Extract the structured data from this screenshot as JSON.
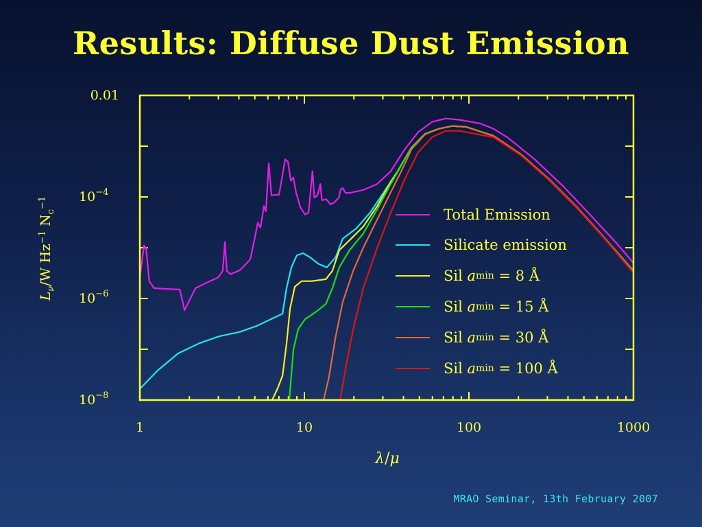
{
  "slide": {
    "title": "Results: Diffuse Dust Emission",
    "footer": "MRAO Seminar, 13th February 2007"
  },
  "chart_data": {
    "type": "line",
    "title": "Results: Diffuse Dust Emission",
    "xlabel": {
      "var": "λ",
      "sep": "/",
      "unit": "μ"
    },
    "ylabel": {
      "var": "L",
      "sub": "ν",
      "unit": "/W Hz",
      "exp1": "−1",
      "n": " N",
      "nsub": "c",
      "exp2": "−1"
    },
    "xscale": "log",
    "yscale": "log",
    "xlim": [
      1,
      1000
    ],
    "ylim": [
      1e-08,
      0.01
    ],
    "xticks": [
      {
        "value": 1,
        "label": "1"
      },
      {
        "value": 10,
        "label": "10"
      },
      {
        "value": 100,
        "label": "100"
      },
      {
        "value": 1000,
        "label": "1000"
      }
    ],
    "yticks": [
      {
        "value": 0.01,
        "base": "0.01",
        "exp": ""
      },
      {
        "value": 0.0001,
        "base": "10",
        "exp": "−4"
      },
      {
        "value": 1e-06,
        "base": "10",
        "exp": "−6"
      },
      {
        "value": 1e-08,
        "base": "10",
        "exp": "−8"
      }
    ],
    "legend_position": "center-right",
    "grid": false,
    "series": [
      {
        "name": "Total Emission",
        "label": {
          "prefix": "Total Emission"
        },
        "color": "#e41ee4",
        "x": [
          1,
          1.06,
          1.09,
          1.14,
          1.22,
          1.41,
          1.75,
          1.87,
          2.18,
          2.51,
          2.99,
          3.19,
          3.29,
          3.38,
          3.55,
          4.06,
          4.69,
          5.01,
          5.21,
          5.41,
          5.68,
          5.84,
          6.07,
          6.31,
          6.68,
          7.01,
          7.36,
          7.64,
          7.94,
          8.26,
          8.58,
          8.91,
          9.44,
          10.1,
          10.6,
          11.2,
          11.5,
          12.0,
          12.5,
          12.8,
          13.6,
          14.4,
          15.2,
          16.2,
          16.6,
          17.1,
          17.8,
          18.8,
          22.8,
          27.7,
          33.5,
          40.6,
          49.2,
          59.6,
          72.2,
          87.4,
          117,
          141,
          171,
          251,
          369,
          541,
          794,
          1000
        ],
        "y": [
          2.6e-06,
          1.1e-05,
          1e-05,
          2.2e-06,
          1.6e-06,
          1.55e-06,
          1.5e-06,
          5.9e-07,
          1.6e-06,
          2e-06,
          2.6e-06,
          3.5e-06,
          1.3e-05,
          3.5e-06,
          3e-06,
          3.6e-06,
          5.9e-06,
          1.65e-05,
          3.1e-05,
          2.5e-05,
          6.6e-05,
          5.2e-05,
          0.00046,
          0.000107,
          0.00011,
          0.00011,
          0.00027,
          0.00055,
          0.0005,
          0.00021,
          0.00024,
          0.00012,
          6.3e-05,
          4.5e-05,
          4.9e-05,
          0.00032,
          9.7e-05,
          0.000107,
          0.00018,
          8.6e-05,
          9e-05,
          7.1e-05,
          7.8e-05,
          9.7e-05,
          0.00014,
          0.00015,
          0.00012,
          0.00012,
          0.000137,
          0.00018,
          0.00032,
          0.00085,
          0.0019,
          0.003,
          0.0035,
          0.0033,
          0.0028,
          0.0022,
          0.0015,
          0.00055,
          0.00017,
          4.6e-05,
          1.2e-05,
          5e-06
        ]
      },
      {
        "name": "Silicate emission",
        "label": {
          "prefix": "Silicate emission"
        },
        "color": "#22e4f2",
        "x": [
          1,
          1.28,
          1.71,
          2.28,
          3.04,
          4.06,
          5.16,
          6.25,
          7.36,
          7.79,
          8.33,
          9.0,
          9.8,
          10.8,
          12.2,
          13.7,
          15.5,
          17.1,
          18.8,
          20.7,
          25.1,
          30.4,
          36.9,
          44.7,
          54.1,
          65.6,
          79.4,
          96.2,
          141,
          207,
          304,
          447,
          656,
          1000
        ],
        "y": [
          1.66e-08,
          3.8e-08,
          8.3e-08,
          1.3e-07,
          1.8e-07,
          2.2e-07,
          2.9e-07,
          3.9e-07,
          5e-07,
          1.6e-06,
          4.1e-06,
          7.1e-06,
          7.8e-06,
          6.5e-06,
          4.8e-06,
          4.1e-06,
          6.5e-06,
          1.5e-05,
          1.9e-05,
          2.4e-05,
          4.9e-05,
          0.000124,
          0.00032,
          0.00093,
          0.00175,
          0.0022,
          0.0025,
          0.0024,
          0.0016,
          0.00069,
          0.00023,
          6.6e-05,
          1.65e-05,
          3.5e-06
        ]
      },
      {
        "name": "Sil a_min = 8 Å",
        "label": {
          "prefix": "Sil ",
          "var": "a",
          "sub": "min",
          "suffix": " = 8 Å"
        },
        "color": "#f2f020",
        "x": [
          6.37,
          6.88,
          7.36,
          7.79,
          8.18,
          8.74,
          9.62,
          11.1,
          13.5,
          14.8,
          16.3,
          18.8,
          22.8,
          27.7,
          33.5,
          36.9,
          44.7,
          54.1,
          65.6,
          79.4,
          96.2,
          141,
          207,
          304,
          447,
          656,
          1000
        ],
        "y": [
          1e-08,
          1.7e-08,
          3e-08,
          1.3e-07,
          6.3e-07,
          1.7e-06,
          2.2e-06,
          2.2e-06,
          2.4e-06,
          3.5e-06,
          8.9e-06,
          1.4e-05,
          2.6e-05,
          6.6e-05,
          0.0002,
          0.00032,
          0.00093,
          0.00175,
          0.0022,
          0.0025,
          0.0024,
          0.0016,
          0.00069,
          0.00023,
          6.6e-05,
          1.65e-05,
          3.5e-06
        ]
      },
      {
        "name": "Sil a_min = 15 Å",
        "label": {
          "prefix": "Sil ",
          "var": "a",
          "sub": "min",
          "suffix": " = 15 Å"
        },
        "color": "#14e014",
        "x": [
          8.1,
          8.58,
          9.17,
          10.1,
          11.7,
          13.5,
          14.8,
          16.3,
          18.8,
          22.8,
          27.7,
          33.5,
          36.9,
          44.7,
          54.1,
          65.6,
          79.4,
          96.2,
          141,
          207,
          304,
          447,
          656,
          1000
        ],
        "y": [
          1e-08,
          9.8e-08,
          2.5e-07,
          3.9e-07,
          5.4e-07,
          7.8e-07,
          1.6e-06,
          4.1e-06,
          8.9e-06,
          1.9e-05,
          5.7e-05,
          0.00018,
          0.00031,
          0.00092,
          0.00175,
          0.0022,
          0.0025,
          0.0024,
          0.0016,
          0.00069,
          0.00023,
          6.6e-05,
          1.65e-05,
          3.5e-06
        ]
      },
      {
        "name": "Sil a_min = 30 Å",
        "label": {
          "prefix": "Sil ",
          "var": "a",
          "sub": "min",
          "suffix": " = 30 Å"
        },
        "color": "#e8673a",
        "x": [
          13.1,
          14.1,
          15.5,
          17.1,
          19.8,
          22.8,
          27.7,
          33.5,
          40.6,
          44.7,
          54.1,
          65.6,
          79.4,
          96.2,
          141,
          207,
          304,
          447,
          656,
          1000
        ],
        "y": [
          1e-08,
          2.8e-08,
          1.8e-07,
          8.5e-07,
          3.5e-06,
          1e-05,
          3.6e-05,
          0.000124,
          0.00043,
          0.00086,
          0.0017,
          0.0022,
          0.0025,
          0.0024,
          0.0016,
          0.00069,
          0.00023,
          6.6e-05,
          1.65e-05,
          3.4e-06
        ]
      },
      {
        "name": "Sil a_min = 100 Å",
        "label": {
          "prefix": "Sil ",
          "var": "a",
          "sub": "min",
          "suffix": " = 100 Å"
        },
        "color": "#e41212",
        "x": [
          16.5,
          18.0,
          19.8,
          22.8,
          27.7,
          33.5,
          40.6,
          49.2,
          59.6,
          72.2,
          87.4,
          141,
          207,
          304,
          447,
          656,
          1000
        ],
        "y": [
          1e-08,
          5.2e-08,
          2.5e-07,
          1.6e-06,
          1e-05,
          4.9e-05,
          0.00022,
          0.00076,
          0.0015,
          0.002,
          0.002,
          0.0015,
          0.00066,
          0.00022,
          6.3e-05,
          1.6e-05,
          3.2e-06
        ]
      }
    ]
  }
}
